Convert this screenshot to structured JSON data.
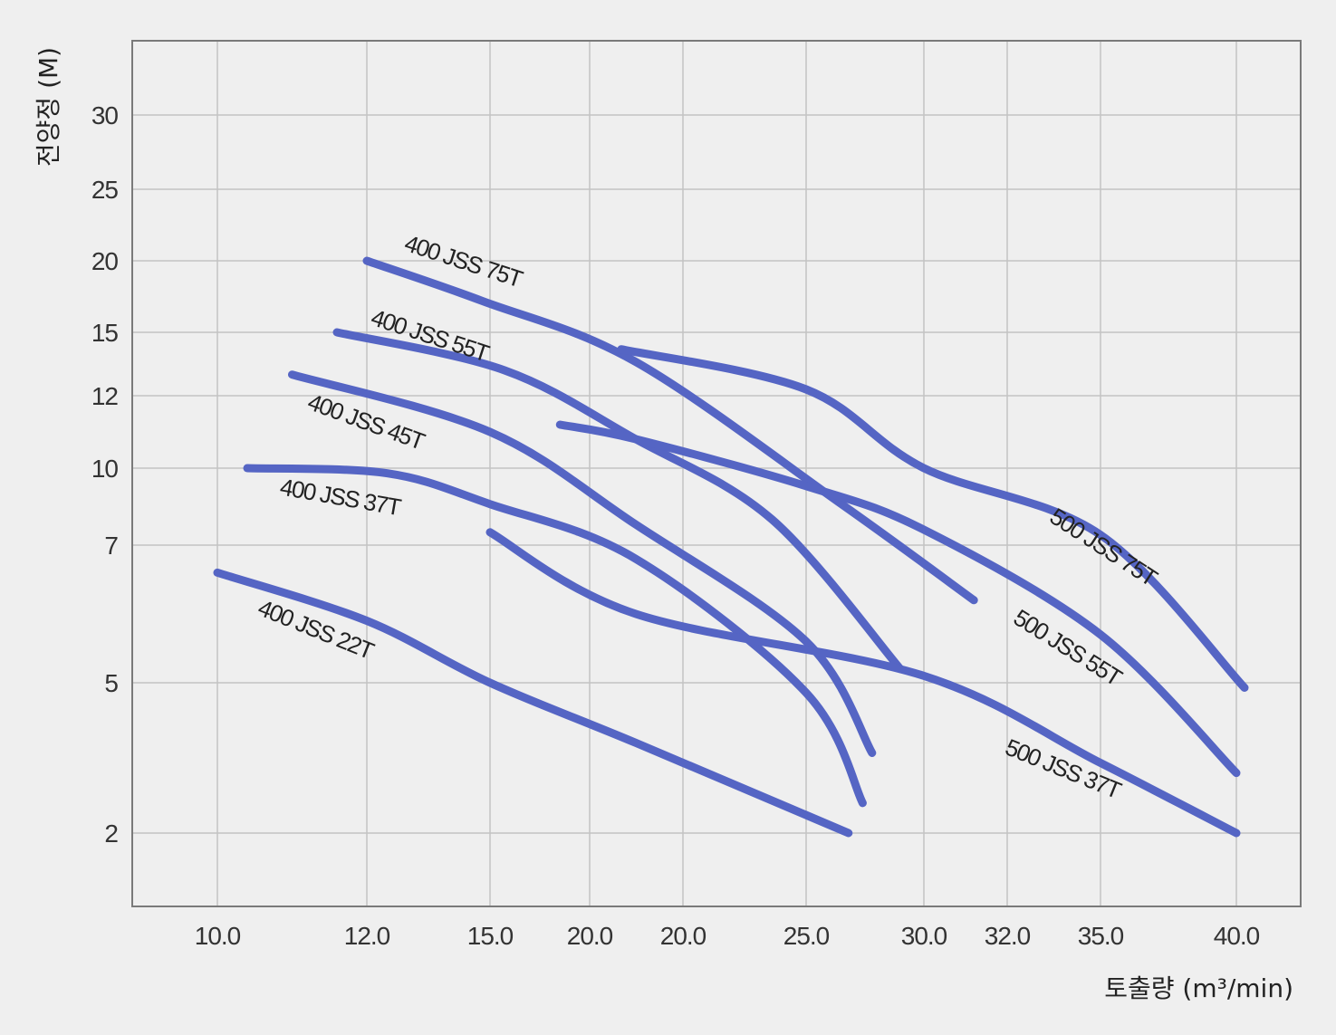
{
  "chart_data": {
    "type": "line",
    "xlabel": "토출량 (m³/min)",
    "ylabel": "전양정 (M)",
    "x_ticks": [
      "10.0",
      "12.0",
      "15.0",
      "20.0",
      "20.0",
      "25.0",
      "30.0",
      "32.0",
      "35.0",
      "40.0"
    ],
    "y_ticks": [
      "30",
      "25",
      "20",
      "15",
      "12",
      "10",
      "7",
      "5",
      "2"
    ],
    "grid": true,
    "line_color": "#5565c4",
    "series": [
      {
        "name": "400 JSS 75T",
        "points": [
          [
            12.0,
            20
          ],
          [
            14.8,
            17.2
          ],
          [
            20.0,
            13.6
          ],
          [
            26.5,
            8.6
          ],
          [
            31.2,
            6.2
          ]
        ]
      },
      {
        "name": "400 JSS 55T",
        "points": [
          [
            11.6,
            15
          ],
          [
            15.5,
            13.2
          ],
          [
            20.0,
            10.8
          ],
          [
            24.0,
            8.0
          ],
          [
            29.0,
            5.2
          ]
        ]
      },
      {
        "name": "400 JSS 45T",
        "points": [
          [
            11.0,
            13.0
          ],
          [
            15.0,
            11.0
          ],
          [
            20.0,
            7.8
          ],
          [
            25.0,
            5.6
          ],
          [
            27.8,
            3.6
          ]
        ]
      },
      {
        "name": "400 JSS 37T",
        "points": [
          [
            10.4,
            10.0
          ],
          [
            12.5,
            9.8
          ],
          [
            15.0,
            8.6
          ],
          [
            20.0,
            6.8
          ],
          [
            25.0,
            4.8
          ],
          [
            27.4,
            2.6
          ]
        ]
      },
      {
        "name": "400 JSS 22T",
        "points": [
          [
            10.0,
            6.6
          ],
          [
            12.0,
            5.9
          ],
          [
            15.0,
            5.0
          ],
          [
            20.0,
            3.8
          ],
          [
            26.8,
            2.0
          ]
        ]
      },
      {
        "name": "500 JSS 75T",
        "points": [
          [
            19.5,
            14.2
          ],
          [
            25.0,
            12.3
          ],
          [
            30.0,
            10.0
          ],
          [
            35.0,
            7.4
          ],
          [
            40.3,
            4.9
          ]
        ]
      },
      {
        "name": "500 JSS 55T",
        "points": [
          [
            17.4,
            11.2
          ],
          [
            20.0,
            10.8
          ],
          [
            25.0,
            9.3
          ],
          [
            30.0,
            7.6
          ],
          [
            35.0,
            5.7
          ],
          [
            40.0,
            3.2
          ]
        ]
      },
      {
        "name": "500 JSS 37T",
        "points": [
          [
            15.0,
            7.5
          ],
          [
            20.0,
            6.0
          ],
          [
            30.0,
            5.1
          ],
          [
            35.0,
            3.4
          ],
          [
            40.0,
            2.0
          ]
        ]
      }
    ]
  }
}
